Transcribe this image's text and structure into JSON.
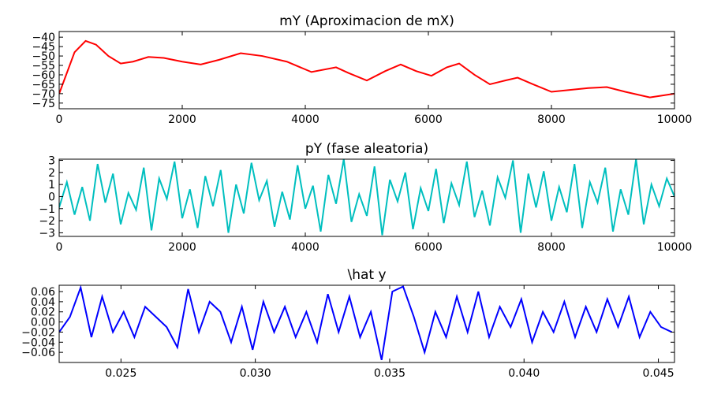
{
  "chart_data": [
    {
      "type": "line",
      "title": "mY (Aproximacion de mX)",
      "x": [
        0,
        250,
        430,
        600,
        800,
        1000,
        1200,
        1450,
        1700,
        2000,
        2300,
        2600,
        2950,
        3300,
        3700,
        4100,
        4500,
        4700,
        5000,
        5300,
        5550,
        5800,
        6050,
        6300,
        6500,
        6750,
        7000,
        7250,
        7450,
        7700,
        8000,
        8300,
        8600,
        8900,
        9200,
        9600,
        9800,
        10000
      ],
      "series": [
        {
          "color": "#ff0000",
          "values": [
            -70,
            -48,
            -42,
            -44,
            -50,
            -54,
            -53,
            -50.5,
            -51,
            -53,
            -54.5,
            -52,
            -48.5,
            -50,
            -53,
            -58.5,
            -56,
            -59,
            -63,
            -58,
            -54.5,
            -58,
            -60.5,
            -56,
            -54,
            -60,
            -65,
            -63,
            -61.5,
            -65,
            -69,
            -68,
            -67,
            -66.5,
            -69,
            -72,
            -71,
            -70
          ]
        }
      ],
      "xlim": [
        0,
        10000
      ],
      "ylim": [
        -78,
        -37
      ],
      "xticks": [
        0,
        2000,
        4000,
        6000,
        8000,
        10000
      ],
      "yticks": [
        {
          "value": -40,
          "label": "−40"
        },
        {
          "value": -45,
          "label": "−45"
        },
        {
          "value": -50,
          "label": "−50"
        },
        {
          "value": -55,
          "label": "−55"
        },
        {
          "value": -60,
          "label": "−60"
        },
        {
          "value": -65,
          "label": "−65"
        },
        {
          "value": -70,
          "label": "−70"
        },
        {
          "value": -75,
          "label": "−75"
        }
      ]
    },
    {
      "type": "line",
      "title": "pY (fase aleatoria)",
      "x": [
        0,
        125,
        250,
        375,
        500,
        625,
        750,
        875,
        1000,
        1125,
        1250,
        1375,
        1500,
        1625,
        1750,
        1875,
        2000,
        2125,
        2250,
        2375,
        2500,
        2625,
        2750,
        2875,
        3000,
        3125,
        3250,
        3375,
        3500,
        3625,
        3750,
        3875,
        4000,
        4125,
        4250,
        4375,
        4500,
        4625,
        4750,
        4875,
        5000,
        5125,
        5250,
        5375,
        5500,
        5625,
        5750,
        5875,
        6000,
        6125,
        6250,
        6375,
        6500,
        6625,
        6750,
        6875,
        7000,
        7125,
        7250,
        7375,
        7500,
        7625,
        7750,
        7875,
        8000,
        8125,
        8250,
        8375,
        8500,
        8625,
        8750,
        8875,
        9000,
        9125,
        9250,
        9375,
        9500,
        9625,
        9750,
        9875,
        10000
      ],
      "series": [
        {
          "color": "#00bfbf",
          "values": [
            -0.9,
            1.2,
            -1.5,
            0.8,
            -2.0,
            2.7,
            -0.5,
            1.9,
            -2.3,
            0.3,
            -1.1,
            2.4,
            -2.8,
            1.5,
            -0.2,
            2.9,
            -1.8,
            0.6,
            -2.6,
            1.7,
            -0.8,
            2.2,
            -3.0,
            1.0,
            -1.4,
            2.8,
            -0.3,
            1.3,
            -2.5,
            0.4,
            -1.9,
            2.6,
            -1.0,
            0.9,
            -2.9,
            1.8,
            -0.6,
            3.1,
            -2.1,
            0.2,
            -1.6,
            2.5,
            -3.2,
            1.4,
            -0.4,
            2.0,
            -2.7,
            0.7,
            -1.2,
            2.3,
            -2.2,
            1.1,
            -0.7,
            2.9,
            -1.7,
            0.5,
            -2.4,
            1.6,
            -0.1,
            3.0,
            -3.0,
            1.9,
            -0.9,
            2.1,
            -2.0,
            0.8,
            -1.3,
            2.7,
            -2.6,
            1.2,
            -0.5,
            2.4,
            -2.9,
            0.6,
            -1.5,
            3.1,
            -2.3,
            1.0,
            -0.8,
            1.5,
            0.0
          ]
        }
      ],
      "xlim": [
        0,
        10000
      ],
      "ylim": [
        -3.3,
        3.1
      ],
      "xticks": [
        0,
        2000,
        4000,
        6000,
        8000,
        10000
      ],
      "yticks": [
        3,
        2,
        1,
        0,
        {
          "value": -1,
          "label": "−1"
        },
        {
          "value": -2,
          "label": "−2"
        },
        {
          "value": -3,
          "label": "−3"
        }
      ]
    },
    {
      "type": "line",
      "title": "\\hat y",
      "x": [
        0.0227,
        0.0231,
        0.0235,
        0.0239,
        0.0243,
        0.0247,
        0.0251,
        0.0255,
        0.0259,
        0.0263,
        0.0267,
        0.0271,
        0.0275,
        0.0279,
        0.0283,
        0.0287,
        0.0291,
        0.0295,
        0.0299,
        0.0303,
        0.0307,
        0.0311,
        0.0315,
        0.0319,
        0.0323,
        0.0327,
        0.0331,
        0.0335,
        0.0339,
        0.0343,
        0.0347,
        0.0351,
        0.0355,
        0.0359,
        0.0363,
        0.0367,
        0.0371,
        0.0375,
        0.0379,
        0.0383,
        0.0387,
        0.0391,
        0.0395,
        0.0399,
        0.0403,
        0.0407,
        0.0411,
        0.0415,
        0.0419,
        0.0423,
        0.0427,
        0.0431,
        0.0435,
        0.0439,
        0.0443,
        0.0447,
        0.0451,
        0.0455
      ],
      "series": [
        {
          "color": "#0000ff",
          "values": [
            -0.02,
            0.01,
            0.068,
            -0.03,
            0.05,
            -0.02,
            0.02,
            -0.03,
            0.03,
            0.01,
            -0.01,
            -0.05,
            0.065,
            -0.02,
            0.04,
            0.02,
            -0.04,
            0.03,
            -0.055,
            0.04,
            -0.02,
            0.03,
            -0.03,
            0.02,
            -0.04,
            0.055,
            -0.02,
            0.05,
            -0.03,
            0.02,
            -0.075,
            0.06,
            0.07,
            0.01,
            -0.06,
            0.02,
            -0.03,
            0.05,
            -0.02,
            0.06,
            -0.03,
            0.03,
            -0.01,
            0.045,
            -0.04,
            0.02,
            -0.02,
            0.04,
            -0.03,
            0.03,
            -0.02,
            0.045,
            -0.01,
            0.05,
            -0.03,
            0.02,
            -0.01,
            -0.02
          ]
        }
      ],
      "xlim": [
        0.0227,
        0.0456
      ],
      "ylim": [
        -0.08,
        0.0725
      ],
      "xticks": [
        0.025,
        {
          "value": 0.03,
          "label": "0.030"
        },
        0.035,
        {
          "value": 0.04,
          "label": "0.040"
        },
        0.045
      ],
      "yticks": [
        0.06,
        0.04,
        0.02,
        {
          "value": 0,
          "label": "0.00"
        },
        {
          "value": -0.02,
          "label": "−0.02"
        },
        {
          "value": -0.04,
          "label": "−0.04"
        },
        {
          "value": -0.06,
          "label": "−0.06"
        }
      ]
    }
  ]
}
